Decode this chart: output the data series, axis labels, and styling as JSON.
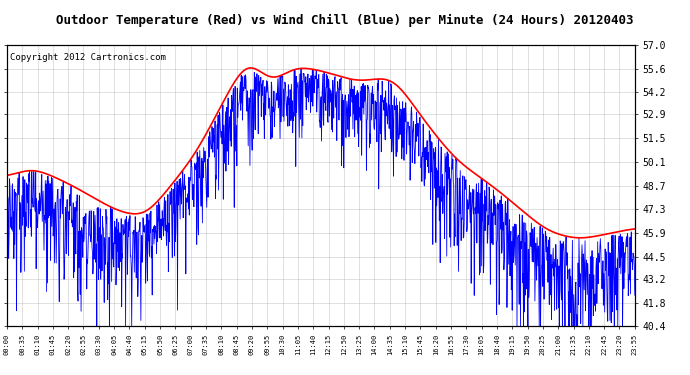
{
  "title": "Outdoor Temperature (Red) vs Wind Chill (Blue) per Minute (24 Hours) 20120403",
  "copyright": "Copyright 2012 Cartronics.com",
  "ylabel_right_ticks": [
    40.4,
    41.8,
    43.2,
    44.5,
    45.9,
    47.3,
    48.7,
    50.1,
    51.5,
    52.9,
    54.2,
    55.6,
    57.0
  ],
  "ymin": 40.4,
  "ymax": 57.0,
  "temp_color": "red",
  "wind_color": "blue",
  "bg_color": "white",
  "grid_color": "#bbbbbb",
  "title_fontsize": 9,
  "copyright_fontsize": 6.5,
  "x_tick_labels": [
    "00:00",
    "00:35",
    "01:10",
    "01:45",
    "02:20",
    "02:55",
    "03:30",
    "04:05",
    "04:40",
    "05:15",
    "05:50",
    "06:25",
    "07:00",
    "07:35",
    "08:10",
    "08:45",
    "09:20",
    "09:55",
    "10:30",
    "11:05",
    "11:40",
    "12:15",
    "12:50",
    "13:25",
    "14:00",
    "14:35",
    "15:10",
    "15:45",
    "16:20",
    "16:55",
    "17:30",
    "18:05",
    "18:40",
    "19:15",
    "19:50",
    "20:25",
    "21:00",
    "21:35",
    "22:10",
    "22:45",
    "23:20",
    "23:55"
  ],
  "temp_ctrl_t": [
    0.0,
    0.04,
    0.1,
    0.175,
    0.22,
    0.3,
    0.385,
    0.42,
    0.455,
    0.5,
    0.56,
    0.615,
    0.665,
    0.715,
    0.78,
    0.86,
    0.91,
    0.95,
    1.0
  ],
  "temp_ctrl_v": [
    49.2,
    49.8,
    48.8,
    47.2,
    46.8,
    50.5,
    56.5,
    54.5,
    55.8,
    55.5,
    54.8,
    55.2,
    52.5,
    50.2,
    48.5,
    46.0,
    45.5,
    45.8,
    46.2
  ]
}
